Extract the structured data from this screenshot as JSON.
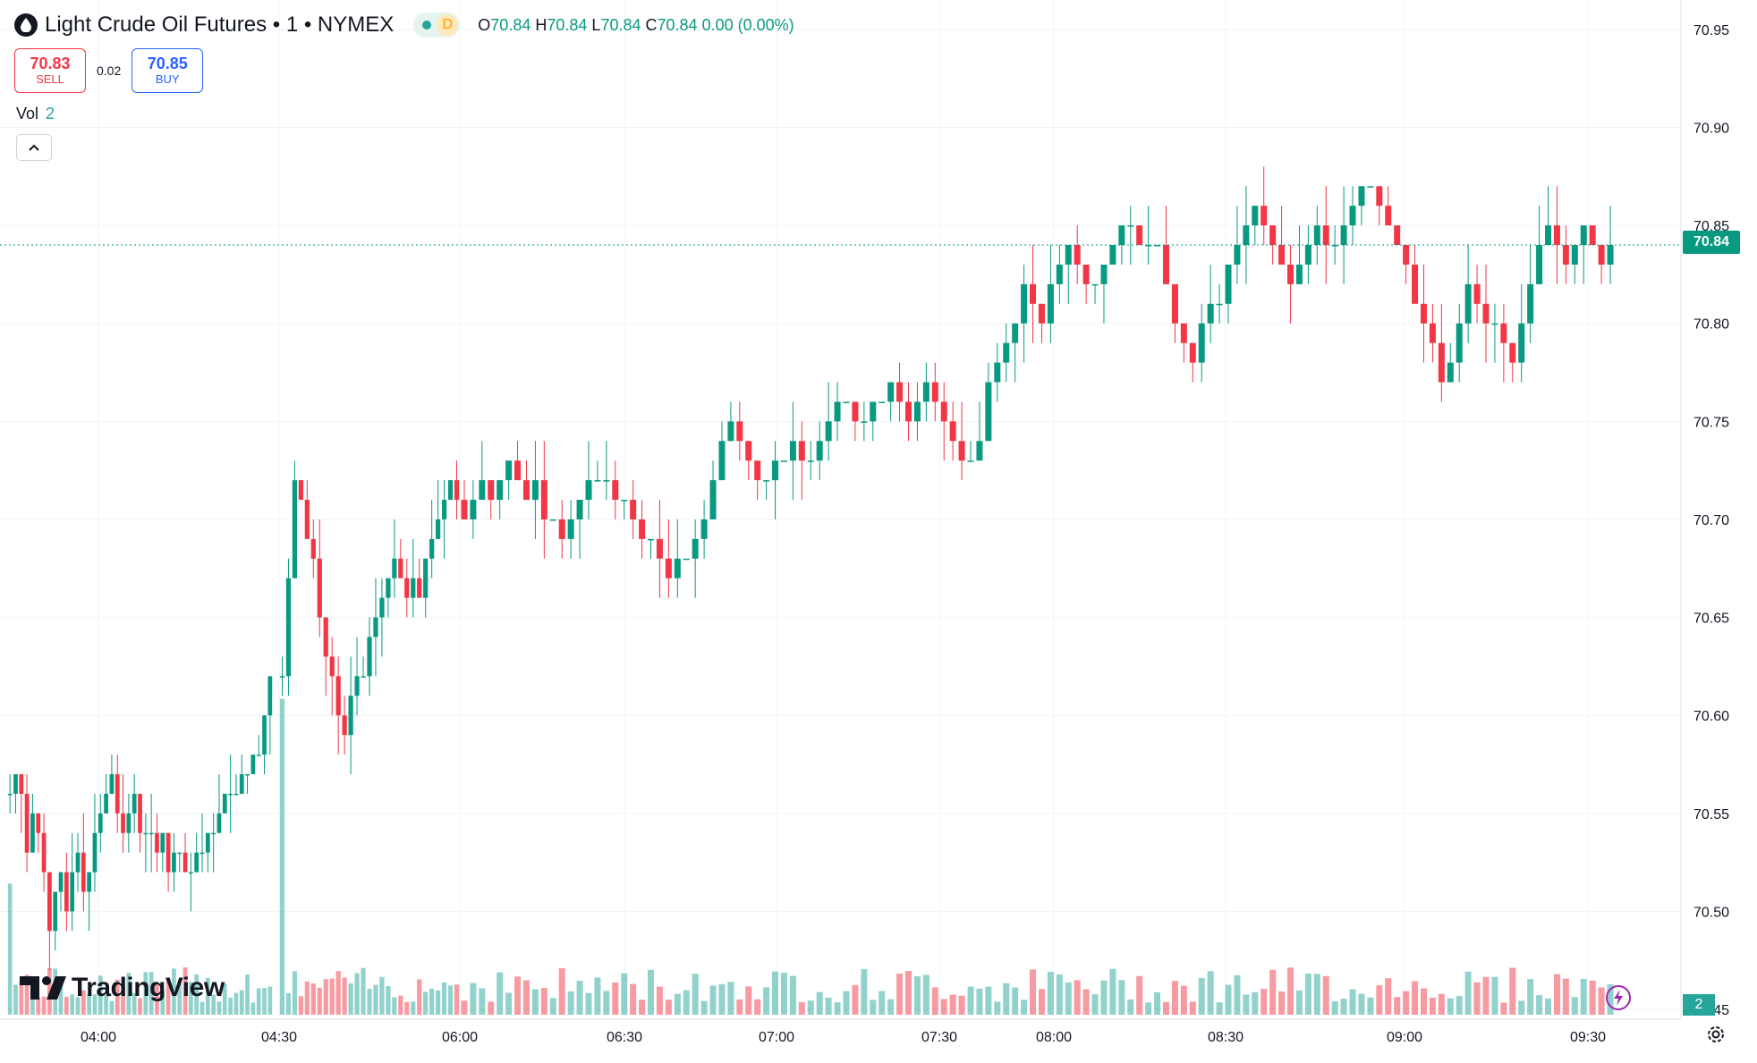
{
  "header": {
    "title": "Light Crude Oil Futures • 1 • NYMEX",
    "badge_letter": "D",
    "open_label": "O",
    "open": "70.84",
    "high_label": "H",
    "high": "70.84",
    "low_label": "L",
    "low": "70.84",
    "close_label": "C",
    "close": "70.84",
    "change": "0.00 (0.00%)"
  },
  "trade": {
    "sell_price": "70.83",
    "sell_label": "SELL",
    "spread": "0.02",
    "buy_price": "70.85",
    "buy_label": "BUY"
  },
  "volume": {
    "label": "Vol",
    "value": "2"
  },
  "brand": {
    "name": "TradingView"
  },
  "price_axis": {
    "current": "70.84",
    "volume_current": "2"
  },
  "colors": {
    "up": "#089981",
    "down": "#f23645",
    "up_vol": "#26a69a",
    "accent": "#2962ff"
  },
  "chart_data": {
    "type": "candlestick",
    "title": "Light Crude Oil Futures • 1 • NYMEX",
    "xlabel": "",
    "ylabel": "",
    "ylim": [
      70.445,
      70.965
    ],
    "y_ticks": [
      "70.95",
      "70.90",
      "70.85",
      "70.80",
      "70.75",
      "70.70",
      "70.65",
      "70.60",
      "70.55",
      "70.50",
      "70.45"
    ],
    "x_ticks": [
      "04:00",
      "04:30",
      "06:00",
      "06:30",
      "07:00",
      "07:30",
      "08:00",
      "08:30",
      "09:00",
      "09:30"
    ],
    "last_price": 70.84,
    "grid": true,
    "sessions": [
      {
        "start": "03:44",
        "end": "04:30",
        "closes": [
          70.56,
          70.57,
          70.56,
          70.53,
          70.55,
          70.54,
          70.52,
          70.49,
          70.51,
          70.52,
          70.5,
          70.52,
          70.53,
          70.51,
          70.52,
          70.54,
          70.55,
          70.56,
          70.57,
          70.55,
          70.54,
          70.55,
          70.56,
          70.54,
          70.54,
          70.54,
          70.53,
          70.54,
          70.52,
          70.53,
          70.53,
          70.52,
          70.52,
          70.53,
          70.53,
          70.54,
          70.54,
          70.55,
          70.56,
          70.56,
          70.56,
          70.57,
          70.57,
          70.58,
          70.58,
          70.6,
          70.62
        ]
      },
      {
        "start": "04:30",
        "end": "05:45",
        "closes": [
          70.62,
          70.67,
          70.72,
          70.71,
          70.69,
          70.68,
          70.65,
          70.63,
          70.62,
          70.6,
          70.59,
          70.61,
          70.62,
          70.62,
          70.64,
          70.65,
          70.66,
          70.67,
          70.68,
          70.67,
          70.66,
          70.67,
          70.66,
          70.68,
          70.69,
          70.7,
          70.71,
          70.72,
          70.71
        ]
      },
      {
        "start": "05:45",
        "end": "09:35",
        "closes": [
          70.7,
          70.71,
          70.72,
          70.71,
          70.72,
          70.73,
          70.72,
          70.71,
          70.72,
          70.7,
          70.7,
          70.69,
          70.7,
          70.71,
          70.72,
          70.72,
          70.72,
          70.71,
          70.71,
          70.7,
          70.69,
          70.69,
          70.68,
          70.67,
          70.68,
          70.68,
          70.69,
          70.7,
          70.72,
          70.74,
          70.75,
          70.74,
          70.73,
          70.72,
          70.72,
          70.73,
          70.73,
          70.74,
          70.73,
          70.73,
          70.74,
          70.75,
          70.76,
          70.76,
          70.75,
          70.75,
          70.76,
          70.76,
          70.77,
          70.76,
          70.75,
          70.76,
          70.77,
          70.76,
          70.75,
          70.74,
          70.73,
          70.73,
          70.74,
          70.77,
          70.78,
          70.79,
          70.8,
          70.82,
          70.81,
          70.8,
          70.82,
          70.83,
          70.84,
          70.83,
          70.82,
          70.82,
          70.83,
          70.84,
          70.85,
          70.85,
          70.84,
          70.84,
          70.84,
          70.82,
          70.8,
          70.79,
          70.78,
          70.8,
          70.81,
          70.81,
          70.83,
          70.84,
          70.85,
          70.86,
          70.85,
          70.84,
          70.83,
          70.82,
          70.83,
          70.84,
          70.85,
          70.84,
          70.84,
          70.85,
          70.86,
          70.87,
          70.87,
          70.86,
          70.85,
          70.84,
          70.83,
          70.81,
          70.8,
          70.79,
          70.77,
          70.78,
          70.8,
          70.82,
          70.81,
          70.8,
          70.8,
          70.79,
          70.78,
          70.8,
          70.82,
          70.84,
          70.85,
          70.84,
          70.83,
          70.84,
          70.85,
          70.84,
          70.83,
          70.84
        ]
      }
    ],
    "volume_ylim": [
      0,
      60
    ],
    "notable_volume_spikes": [
      {
        "time": "03:44",
        "volume": 22
      },
      {
        "time": "04:31",
        "volume": 53
      },
      {
        "time": "07:48",
        "volume": 8
      },
      {
        "time": "08:00",
        "volume": 18
      },
      {
        "time": "09:00",
        "volume": 24
      },
      {
        "time": "08:58",
        "volume": 7
      }
    ]
  }
}
